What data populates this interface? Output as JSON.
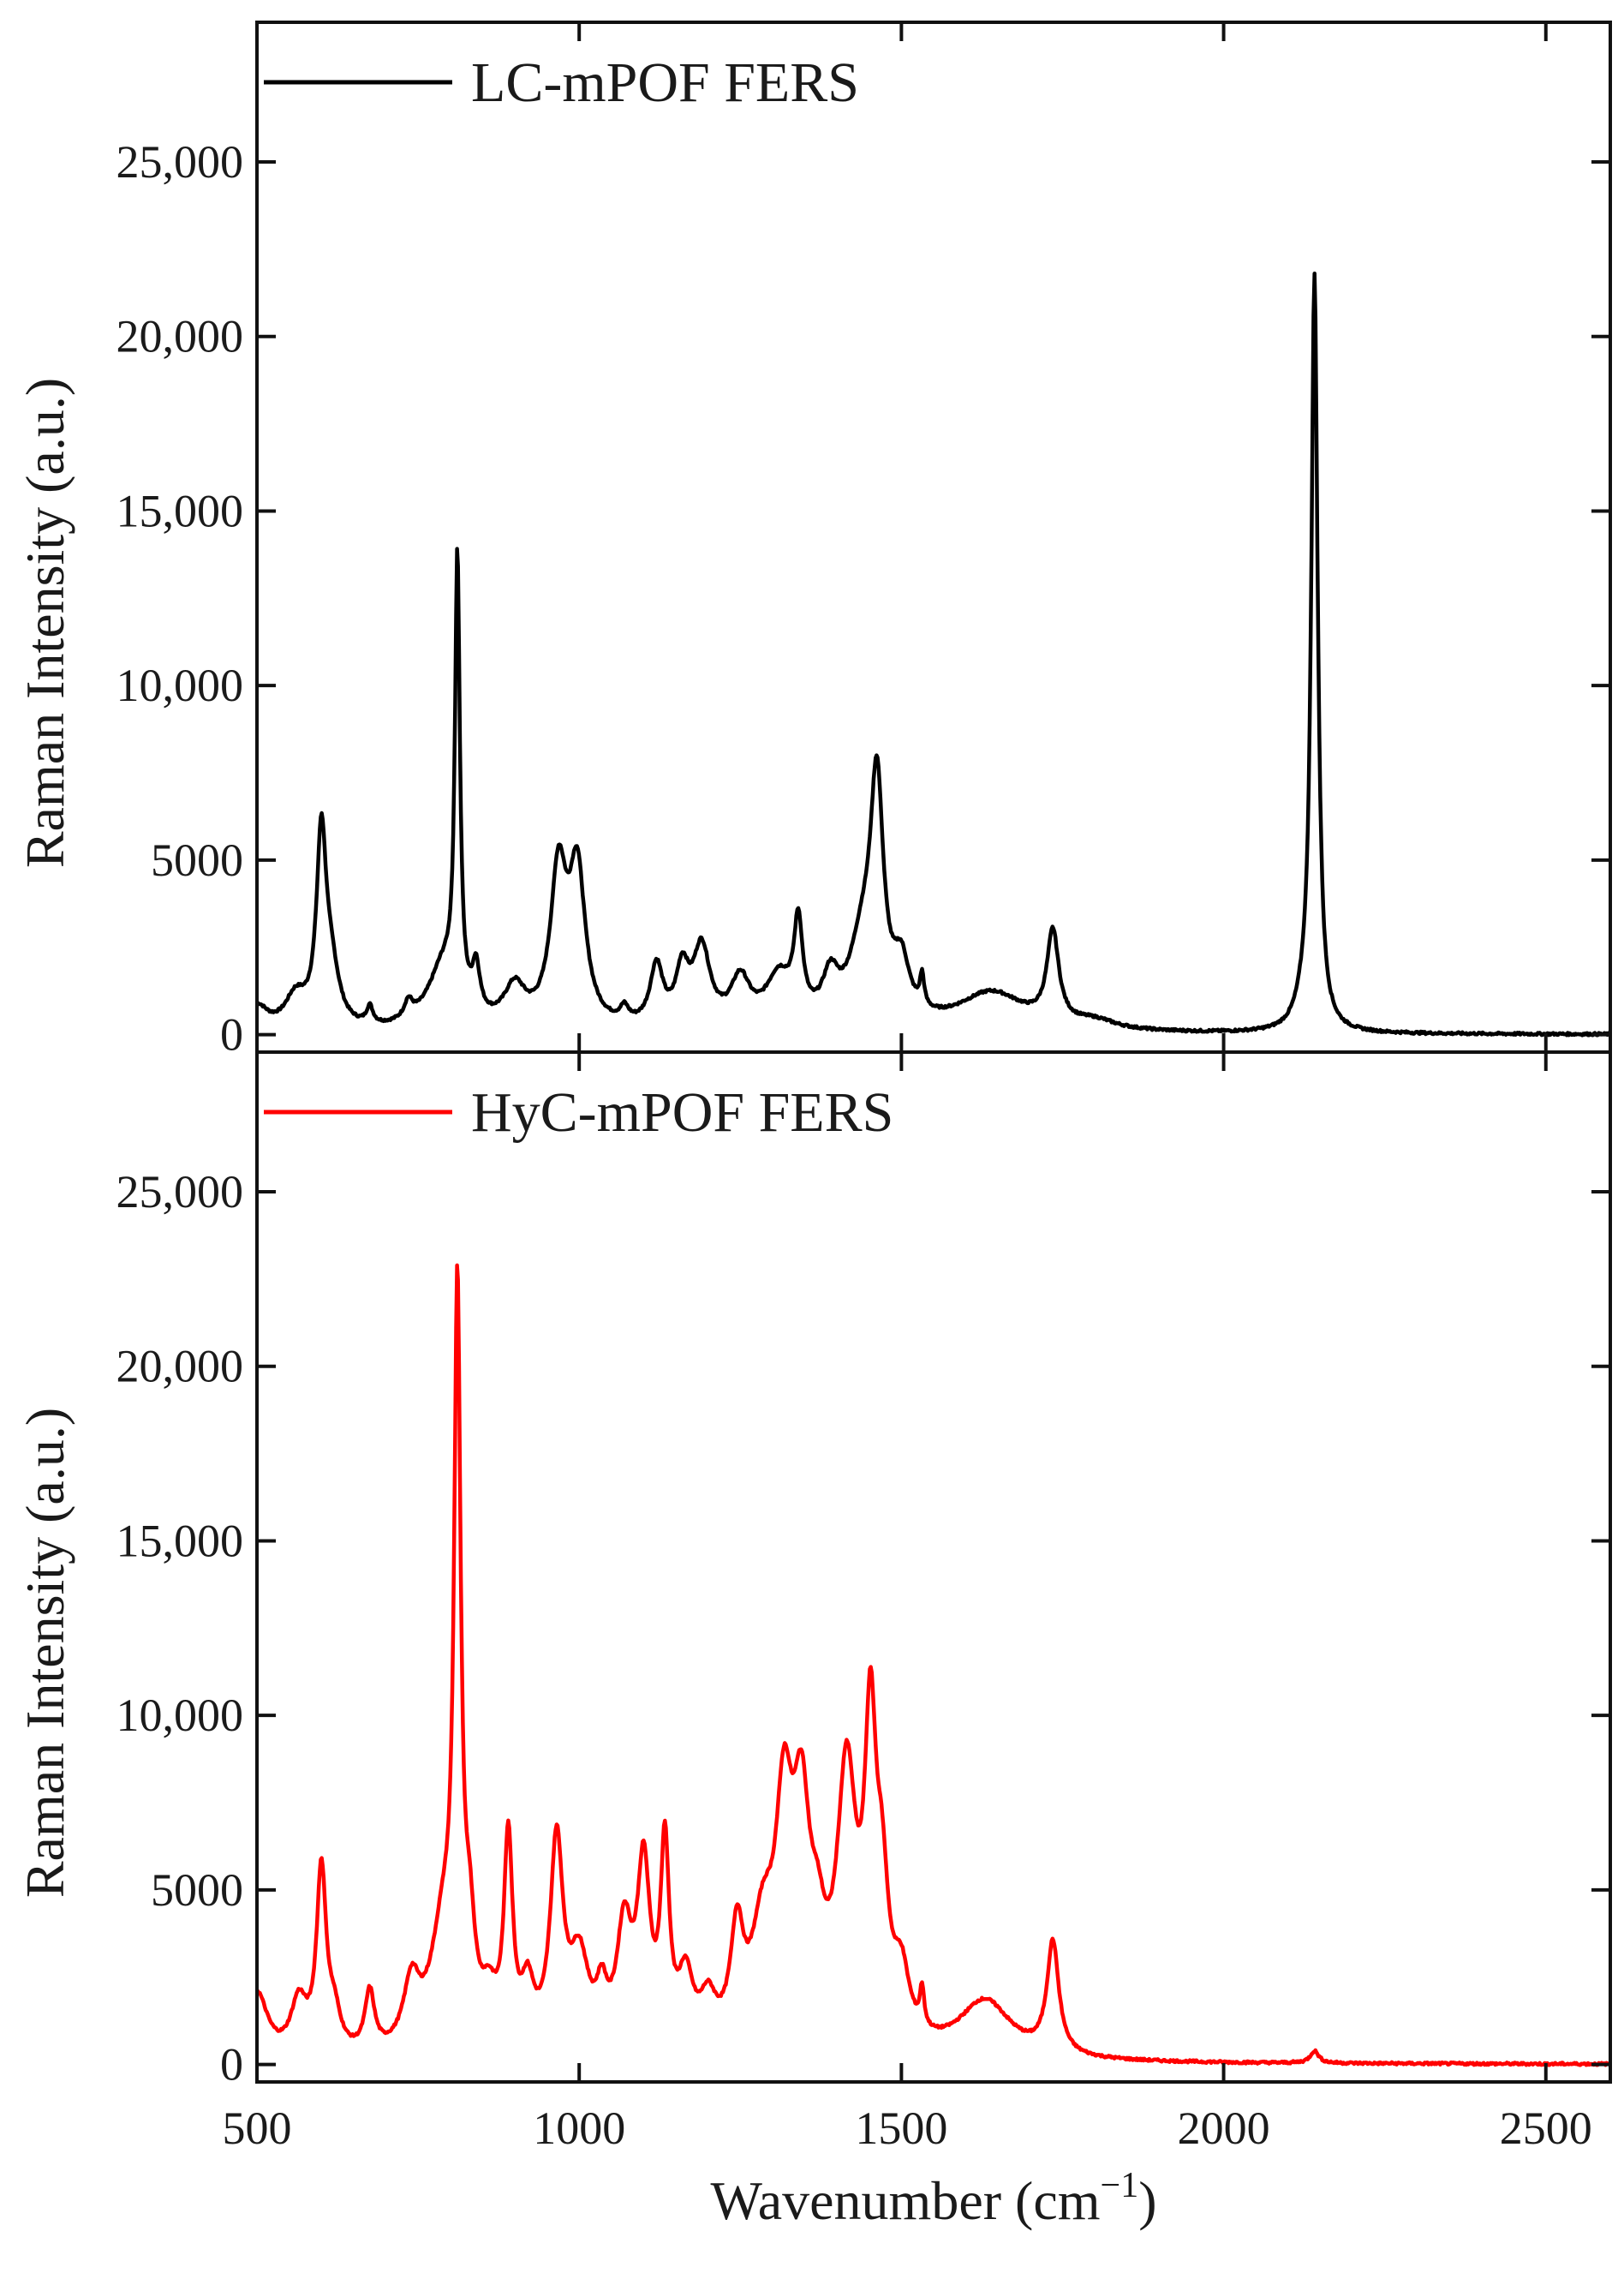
{
  "chart_data": [
    {
      "type": "line",
      "legend_position": "top-left",
      "grid": false,
      "xlabel": "",
      "ylabel": "Raman Intensity (a.u.)",
      "xlim": [
        500,
        2600
      ],
      "ylim": [
        -500,
        29000
      ],
      "xticks": [
        500,
        1000,
        1500,
        2000,
        2500
      ],
      "yticks": [
        0,
        5000,
        10000,
        15000,
        20000,
        25000
      ],
      "ytick_labels": [
        "0",
        "5000",
        "10,000",
        "15,000",
        "20,000",
        "25,000"
      ],
      "series": [
        {
          "name": "LC-mPOF FERS",
          "color": "#000000",
          "peaks": [
            {
              "x": 500,
              "y": 700,
              "w": 20
            },
            {
              "x": 560,
              "y": 900,
              "w": 20
            },
            {
              "x": 600,
              "y": 5300,
              "w": 9
            },
            {
              "x": 615,
              "y": 1500,
              "w": 15
            },
            {
              "x": 675,
              "y": 500,
              "w": 6
            },
            {
              "x": 735,
              "y": 500,
              "w": 8
            },
            {
              "x": 790,
              "y": 1800,
              "w": 30
            },
            {
              "x": 811,
              "y": 12600,
              "w": 4.5
            },
            {
              "x": 840,
              "y": 1300,
              "w": 7
            },
            {
              "x": 900,
              "y": 1100,
              "w": 20
            },
            {
              "x": 968,
              "y": 4300,
              "w": 15
            },
            {
              "x": 997,
              "y": 4300,
              "w": 15
            },
            {
              "x": 1070,
              "y": 400,
              "w": 8
            },
            {
              "x": 1120,
              "y": 1700,
              "w": 12
            },
            {
              "x": 1160,
              "y": 1500,
              "w": 12
            },
            {
              "x": 1190,
              "y": 2200,
              "w": 16
            },
            {
              "x": 1250,
              "y": 1300,
              "w": 18
            },
            {
              "x": 1310,
              "y": 1400,
              "w": 25
            },
            {
              "x": 1340,
              "y": 2600,
              "w": 8
            },
            {
              "x": 1390,
              "y": 1200,
              "w": 15
            },
            {
              "x": 1440,
              "y": 2200,
              "w": 25
            },
            {
              "x": 1462,
              "y": 6300,
              "w": 12
            },
            {
              "x": 1500,
              "y": 1500,
              "w": 15
            },
            {
              "x": 1532,
              "y": 900,
              "w": 4
            },
            {
              "x": 1640,
              "y": 1100,
              "w": 65
            },
            {
              "x": 1735,
              "y": 2600,
              "w": 11
            },
            {
              "x": 1800,
              "y": 250,
              "w": 40
            },
            {
              "x": 2141,
              "y": 21500,
              "w": 6
            },
            {
              "x": 2125,
              "y": 600,
              "w": 15
            }
          ]
        },
        {
          "name": "HyC-mPOF FERS",
          "color": "#ff0000",
          "peaks": [
            {
              "x": 500,
              "y": 1900,
              "w": 20
            },
            {
              "x": 565,
              "y": 1500,
              "w": 15
            },
            {
              "x": 600,
              "y": 5200,
              "w": 9
            },
            {
              "x": 620,
              "y": 1000,
              "w": 12
            },
            {
              "x": 675,
              "y": 1700,
              "w": 9
            },
            {
              "x": 740,
              "y": 1800,
              "w": 15
            },
            {
              "x": 790,
              "y": 3500,
              "w": 25
            },
            {
              "x": 811,
              "y": 20000,
              "w": 6
            },
            {
              "x": 830,
              "y": 2500,
              "w": 10
            },
            {
              "x": 860,
              "y": 1200,
              "w": 15
            },
            {
              "x": 890,
              "y": 5800,
              "w": 8
            },
            {
              "x": 920,
              "y": 1600,
              "w": 12
            },
            {
              "x": 965,
              "y": 5800,
              "w": 12
            },
            {
              "x": 1000,
              "y": 2500,
              "w": 18
            },
            {
              "x": 1035,
              "y": 1300,
              "w": 10
            },
            {
              "x": 1070,
              "y": 3300,
              "w": 14
            },
            {
              "x": 1100,
              "y": 5000,
              "w": 12
            },
            {
              "x": 1133,
              "y": 5500,
              "w": 8
            },
            {
              "x": 1165,
              "y": 1900,
              "w": 14
            },
            {
              "x": 1200,
              "y": 1200,
              "w": 15
            },
            {
              "x": 1245,
              "y": 3000,
              "w": 12
            },
            {
              "x": 1285,
              "y": 3000,
              "w": 22
            },
            {
              "x": 1318,
              "y": 6000,
              "w": 16
            },
            {
              "x": 1345,
              "y": 5800,
              "w": 16
            },
            {
              "x": 1370,
              "y": 2000,
              "w": 15
            },
            {
              "x": 1415,
              "y": 7500,
              "w": 18
            },
            {
              "x": 1452,
              "y": 8200,
              "w": 11
            },
            {
              "x": 1470,
              "y": 3500,
              "w": 12
            },
            {
              "x": 1500,
              "y": 1800,
              "w": 15
            },
            {
              "x": 1532,
              "y": 1100,
              "w": 4
            },
            {
              "x": 1630,
              "y": 1650,
              "w": 50
            },
            {
              "x": 1735,
              "y": 3200,
              "w": 11
            },
            {
              "x": 2141,
              "y": 350,
              "w": 8
            }
          ]
        }
      ]
    }
  ],
  "axes": {
    "x_tick_labels": [
      "500",
      "1000",
      "1500",
      "2000",
      "2500"
    ],
    "x_title_prefix": "Wavenumber (cm",
    "x_title_superscript": "−1",
    "x_title_suffix": ")"
  }
}
